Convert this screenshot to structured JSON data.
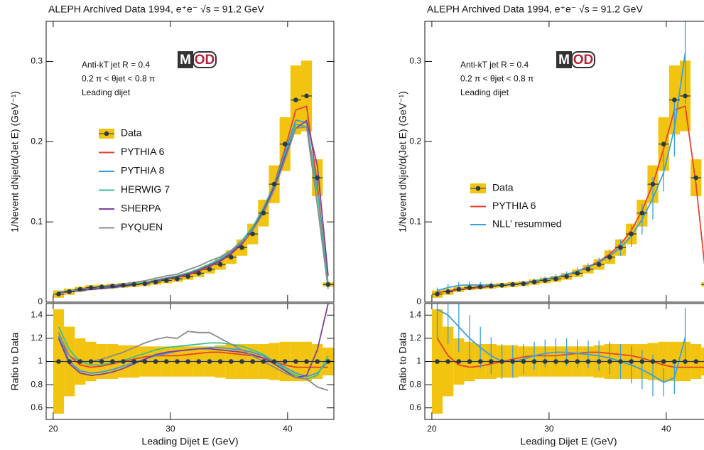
{
  "chart_data": [
    {
      "type": "histogram",
      "title": "ALEPH Archived Data 1994, e⁺e⁻ √s = 91.2 GeV",
      "annotations": [
        "Anti-kT jet R = 0.4",
        "0.2 π < θjet < 0.8 π",
        "Leading dijet"
      ],
      "logo": [
        "M",
        "OD"
      ],
      "xlabel": "Leading Dijet E (GeV)",
      "bins": [
        20,
        20.92,
        21.84,
        22.76,
        23.68,
        24.6,
        25.52,
        26.44,
        27.36,
        28.28,
        29.2,
        30.12,
        31.04,
        31.96,
        32.88,
        33.8,
        34.72,
        35.64,
        36.56,
        37.48,
        38.4,
        39.32,
        40.24,
        41.16,
        42.08,
        43.0,
        43.92
      ],
      "xlim": [
        19.4,
        43.95
      ],
      "xticks": [
        20,
        30,
        40
      ],
      "main": {
        "ylabel": "1/Nevent dNjet/d(Jet E)  (GeV⁻¹)",
        "ylim": [
          0,
          0.35
        ],
        "yticks": [
          0,
          0.1,
          0.2,
          0.3
        ],
        "data": {
          "name": "Data",
          "color": "#f2c40f",
          "marker_color": "#2b3a47",
          "values": [
            0.01,
            0.013,
            0.016,
            0.018,
            0.019,
            0.02,
            0.021,
            0.022,
            0.023,
            0.025,
            0.027,
            0.029,
            0.032,
            0.036,
            0.041,
            0.047,
            0.056,
            0.068,
            0.085,
            0.111,
            0.147,
            0.197,
            0.252,
            0.257,
            0.155,
            0.022
          ],
          "errors": [
            0.0045,
            0.0039,
            0.0032,
            0.0031,
            0.0029,
            0.003,
            0.0029,
            0.0031,
            0.003,
            0.0033,
            0.0035,
            0.0038,
            0.0042,
            0.0047,
            0.0053,
            0.0066,
            0.0084,
            0.0102,
            0.0128,
            0.0167,
            0.0235,
            0.0335,
            0.043,
            0.044,
            0.023,
            0.0026
          ]
        },
        "series": [
          {
            "name": "PYTHIA 6",
            "color": "#e8412c",
            "values": [
              0.012,
              0.0137,
              0.0155,
              0.0171,
              0.0182,
              0.0196,
              0.021,
              0.0224,
              0.0239,
              0.0263,
              0.0284,
              0.0305,
              0.0339,
              0.0385,
              0.0443,
              0.0508,
              0.0599,
              0.0721,
              0.0893,
              0.1143,
              0.147,
              0.1911,
              0.2394,
              0.2442,
              0.1473,
              0.0209
            ]
          },
          {
            "name": "PYTHIA 8",
            "color": "#3a9bd9",
            "values": [
              0.0122,
              0.013,
              0.0147,
              0.0162,
              0.0173,
              0.0186,
              0.0202,
              0.0218,
              0.0235,
              0.0263,
              0.0289,
              0.0316,
              0.0352,
              0.04,
              0.0459,
              0.0526,
              0.0622,
              0.0748,
              0.0918,
              0.1166,
              0.147,
              0.1872,
              0.2268,
              0.2236,
              0.1395,
              0.022
            ]
          },
          {
            "name": "HERWIG 7",
            "color": "#3dbf8a",
            "values": [
              0.013,
              0.0143,
              0.016,
              0.0175,
              0.0184,
              0.0198,
              0.0212,
              0.0229,
              0.0246,
              0.0275,
              0.0302,
              0.0328,
              0.0365,
              0.0414,
              0.0476,
              0.0545,
              0.0644,
              0.0768,
              0.0935,
              0.1177,
              0.147,
              0.1832,
              0.2218,
              0.2185,
              0.1364,
              0.0231
            ]
          },
          {
            "name": "SHERPA",
            "color": "#7b3fa0",
            "values": [
              0.012,
              0.0127,
              0.0144,
              0.0158,
              0.0169,
              0.0182,
              0.0197,
              0.0216,
              0.0235,
              0.0265,
              0.0292,
              0.0316,
              0.0352,
              0.04,
              0.0455,
              0.0517,
              0.061,
              0.0734,
              0.0901,
              0.1143,
              0.1441,
              0.1812,
              0.2167,
              0.2262,
              0.1705,
              0.033
            ]
          },
          {
            "name": "PYQUEN",
            "color": "#8c8c8c",
            "values": [
              0.0125,
              0.0137,
              0.016,
              0.018,
              0.0194,
              0.021,
              0.0227,
              0.0246,
              0.0267,
              0.0298,
              0.0327,
              0.0348,
              0.0403,
              0.045,
              0.0513,
              0.0564,
              0.0644,
              0.0748,
              0.0893,
              0.111,
              0.1397,
              0.1773,
              0.2167,
              0.2185,
              0.1209,
              0.0165
            ]
          }
        ]
      },
      "ratio": {
        "ylabel": "Ratio to Data",
        "ylim": [
          0.5,
          1.5
        ],
        "yticks": [
          0.6,
          0.8,
          1,
          1.2,
          1.4
        ],
        "data": {
          "values": [
            1,
            1,
            1,
            1,
            1,
            1,
            1,
            1,
            1,
            1,
            1,
            1,
            1,
            1,
            1,
            1,
            1,
            1,
            1,
            1,
            1,
            1,
            1,
            1,
            1,
            1
          ],
          "errors": [
            0.45,
            0.3,
            0.2,
            0.17,
            0.15,
            0.15,
            0.14,
            0.14,
            0.13,
            0.13,
            0.13,
            0.13,
            0.13,
            0.13,
            0.13,
            0.14,
            0.15,
            0.15,
            0.15,
            0.15,
            0.16,
            0.17,
            0.17,
            0.17,
            0.15,
            0.12
          ]
        },
        "series": [
          {
            "values": [
              1.2,
              1.05,
              0.97,
              0.95,
              0.96,
              0.98,
              1.0,
              1.02,
              1.04,
              1.05,
              1.05,
              1.05,
              1.06,
              1.07,
              1.08,
              1.08,
              1.07,
              1.06,
              1.05,
              1.03,
              1.0,
              0.97,
              0.95,
              0.95,
              0.95,
              0.95
            ]
          },
          {
            "values": [
              1.22,
              1.0,
              0.92,
              0.9,
              0.91,
              0.93,
              0.96,
              0.99,
              1.02,
              1.05,
              1.07,
              1.09,
              1.1,
              1.11,
              1.12,
              1.12,
              1.11,
              1.1,
              1.08,
              1.05,
              1.0,
              0.95,
              0.9,
              0.87,
              0.9,
              1.0
            ]
          },
          {
            "values": [
              1.3,
              1.1,
              1.0,
              0.97,
              0.97,
              0.99,
              1.01,
              1.04,
              1.07,
              1.1,
              1.12,
              1.13,
              1.14,
              1.15,
              1.16,
              1.16,
              1.15,
              1.13,
              1.1,
              1.06,
              1.0,
              0.93,
              0.88,
              0.85,
              0.88,
              1.05
            ]
          },
          {
            "values": [
              1.2,
              0.98,
              0.9,
              0.88,
              0.89,
              0.91,
              0.94,
              0.98,
              1.02,
              1.06,
              1.08,
              1.09,
              1.1,
              1.11,
              1.11,
              1.1,
              1.09,
              1.08,
              1.06,
              1.03,
              0.98,
              0.92,
              0.86,
              0.88,
              1.1,
              1.5
            ]
          },
          {
            "values": [
              1.25,
              1.05,
              1.0,
              1.0,
              1.02,
              1.05,
              1.08,
              1.12,
              1.16,
              1.19,
              1.21,
              1.2,
              1.26,
              1.25,
              1.25,
              1.2,
              1.15,
              1.1,
              1.05,
              1.0,
              0.95,
              0.9,
              0.86,
              0.85,
              0.78,
              0.75
            ]
          }
        ]
      }
    },
    {
      "type": "histogram",
      "title": "ALEPH Archived Data 1994, e⁺e⁻ √s = 91.2 GeV",
      "annotations": [
        "Anti-kT jet R = 0.4",
        "0.2 π < θjet < 0.8 π",
        "Leading dijet"
      ],
      "logo": [
        "M",
        "OD"
      ],
      "xlabel": "Leading Dijet E (GeV)",
      "bins": [
        20,
        20.92,
        21.84,
        22.76,
        23.68,
        24.6,
        25.52,
        26.44,
        27.36,
        28.28,
        29.2,
        30.12,
        31.04,
        31.96,
        32.88,
        33.8,
        34.72,
        35.64,
        36.56,
        37.48,
        38.4,
        39.32,
        40.24,
        41.16,
        42.08,
        43.0,
        43.92
      ],
      "xlim": [
        19.4,
        43.95
      ],
      "xticks": [
        20,
        30,
        40
      ],
      "main": {
        "ylabel": "1/Nevent dNjet/d(Jet E)  (GeV⁻¹)",
        "ylim": [
          0,
          0.35
        ],
        "yticks": [
          0,
          0.1,
          0.2,
          0.3
        ],
        "data": {
          "name": "Data",
          "color": "#f2c40f",
          "marker_color": "#2b3a47",
          "values": [
            0.01,
            0.013,
            0.016,
            0.018,
            0.019,
            0.02,
            0.021,
            0.022,
            0.023,
            0.025,
            0.027,
            0.029,
            0.032,
            0.036,
            0.041,
            0.047,
            0.056,
            0.068,
            0.085,
            0.111,
            0.147,
            0.197,
            0.252,
            0.257,
            0.155,
            0.022
          ],
          "errors": [
            0.0045,
            0.0039,
            0.0032,
            0.0031,
            0.0029,
            0.003,
            0.0029,
            0.0031,
            0.003,
            0.0033,
            0.0035,
            0.0038,
            0.0042,
            0.0047,
            0.0053,
            0.0066,
            0.0084,
            0.0102,
            0.0128,
            0.0167,
            0.0235,
            0.0335,
            0.043,
            0.044,
            0.023,
            0.0026
          ]
        },
        "series": [
          {
            "name": "PYTHIA 6",
            "color": "#e8412c",
            "values": [
              0.012,
              0.0137,
              0.0155,
              0.0171,
              0.0182,
              0.0196,
              0.021,
              0.0224,
              0.0239,
              0.0263,
              0.0284,
              0.0305,
              0.0339,
              0.0385,
              0.0443,
              0.0508,
              0.0599,
              0.0721,
              0.0893,
              0.1143,
              0.147,
              0.1911,
              0.2394,
              0.2442,
              0.1473,
              0.0209
            ]
          },
          {
            "name": "NLL’ resummed",
            "color": "#3aa0dc",
            "values": [
              0.0145,
              0.0182,
              0.0208,
              0.0216,
              0.0213,
              0.021,
              0.021,
              0.022,
              0.0235,
              0.0263,
              0.0289,
              0.0313,
              0.0346,
              0.0385,
              0.0435,
              0.0494,
              0.0577,
              0.068,
              0.0825,
              0.1032,
              0.1294,
              0.1615,
              0.2167,
              0.311,
              null,
              null
            ],
            "errors": [
              0.0036,
              0.0046,
              0.0046,
              0.0043,
              0.0038,
              0.0034,
              0.0032,
              0.0031,
              0.003,
              0.003,
              0.0032,
              0.0035,
              0.0038,
              0.0043,
              0.0049,
              0.0061,
              0.0078,
              0.0102,
              0.0136,
              0.0189,
              0.0265,
              0.0236,
              0.0353,
              0.064,
              null,
              null
            ]
          }
        ]
      },
      "ratio": {
        "ylabel": "Ratio to Data",
        "ylim": [
          0.5,
          1.5
        ],
        "yticks": [
          0.6,
          0.8,
          1,
          1.2,
          1.4
        ],
        "data": {
          "values": [
            1,
            1,
            1,
            1,
            1,
            1,
            1,
            1,
            1,
            1,
            1,
            1,
            1,
            1,
            1,
            1,
            1,
            1,
            1,
            1,
            1,
            1,
            1,
            1,
            1,
            1
          ],
          "errors": [
            0.45,
            0.3,
            0.2,
            0.17,
            0.15,
            0.15,
            0.14,
            0.14,
            0.13,
            0.13,
            0.13,
            0.13,
            0.13,
            0.13,
            0.13,
            0.14,
            0.15,
            0.15,
            0.15,
            0.15,
            0.16,
            0.17,
            0.17,
            0.17,
            0.15,
            0.12
          ]
        },
        "series": [
          {
            "values": [
              1.2,
              1.05,
              0.97,
              0.95,
              0.96,
              0.98,
              1.0,
              1.02,
              1.04,
              1.05,
              1.05,
              1.05,
              1.06,
              1.07,
              1.08,
              1.08,
              1.07,
              1.06,
              1.05,
              1.03,
              1.0,
              0.97,
              0.95,
              0.95,
              0.95,
              0.95
            ]
          },
          {
            "values": [
              1.45,
              1.4,
              1.3,
              1.2,
              1.12,
              1.05,
              1.0,
              1.0,
              1.02,
              1.05,
              1.07,
              1.08,
              1.08,
              1.07,
              1.06,
              1.05,
              1.03,
              1.0,
              0.97,
              0.93,
              0.88,
              0.82,
              0.86,
              1.21,
              null,
              null
            ],
            "errors": [
              0.25,
              0.25,
              0.22,
              0.2,
              0.18,
              0.16,
              0.15,
              0.14,
              0.13,
              0.12,
              0.12,
              0.12,
              0.12,
              0.12,
              0.12,
              0.13,
              0.14,
              0.15,
              0.16,
              0.17,
              0.18,
              0.12,
              0.14,
              0.25,
              null,
              null
            ]
          }
        ]
      }
    }
  ]
}
